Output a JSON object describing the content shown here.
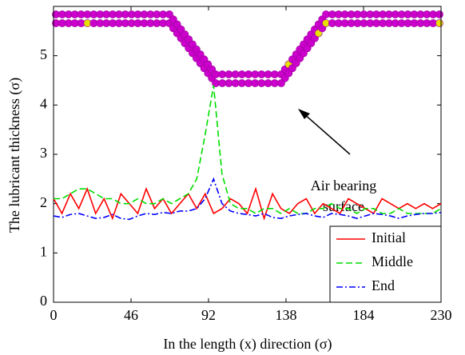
{
  "chart_data": {
    "type": "line",
    "xlabel": "In the length (x) direction (σ)",
    "ylabel": "The lubricant thickness (σ)",
    "annotation": [
      "Air bearing",
      "surface"
    ],
    "x": [
      0,
      5,
      10,
      15,
      20,
      25,
      30,
      35,
      40,
      45,
      50,
      55,
      60,
      65,
      70,
      75,
      80,
      85,
      90,
      95,
      100,
      105,
      110,
      115,
      120,
      125,
      130,
      135,
      140,
      145,
      150,
      155,
      160,
      165,
      170,
      175,
      180,
      185,
      190,
      195,
      200,
      205,
      210,
      215,
      220,
      225,
      230
    ],
    "series": [
      {
        "name": "Initial",
        "color": "#ff0000",
        "dash": "solid",
        "values": [
          2.1,
          1.8,
          2.2,
          1.9,
          2.3,
          1.8,
          2.1,
          1.7,
          2.2,
          2.0,
          1.8,
          2.3,
          1.9,
          2.1,
          1.8,
          2.0,
          2.2,
          1.9,
          2.2,
          1.8,
          1.9,
          2.1,
          2.0,
          1.8,
          2.3,
          1.7,
          2.2,
          1.9,
          1.8,
          2.0,
          2.1,
          1.8,
          2.0,
          1.9,
          1.8,
          2.1,
          2.0,
          1.9,
          1.8,
          2.1,
          2.0,
          1.9,
          2.0,
          1.9,
          2.0,
          1.9,
          2.0
        ]
      },
      {
        "name": "Middle",
        "color": "#00dd00",
        "dash": "dashed",
        "values": [
          2.1,
          2.1,
          2.2,
          2.3,
          2.3,
          2.2,
          2.1,
          2.1,
          2.0,
          2.0,
          2.1,
          2.0,
          2.0,
          2.1,
          2.0,
          2.1,
          2.2,
          2.5,
          3.4,
          4.4,
          2.6,
          2.0,
          1.9,
          1.9,
          1.8,
          1.9,
          1.9,
          1.8,
          1.9,
          1.8,
          1.8,
          1.9,
          1.9,
          2.0,
          1.9,
          1.9,
          1.8,
          1.9,
          1.9,
          1.8,
          1.8,
          1.9,
          1.8,
          1.8,
          1.8,
          1.8,
          1.9
        ]
      },
      {
        "name": "End",
        "color": "#0000ff",
        "dash": "dashdot",
        "values": [
          1.75,
          1.72,
          1.78,
          1.8,
          1.75,
          1.7,
          1.72,
          1.78,
          1.7,
          1.68,
          1.75,
          1.8,
          1.78,
          1.82,
          1.8,
          1.85,
          1.85,
          1.9,
          2.1,
          2.5,
          2.0,
          1.85,
          1.8,
          1.78,
          1.75,
          1.8,
          1.72,
          1.7,
          1.75,
          1.78,
          1.8,
          1.75,
          1.72,
          1.8,
          1.78,
          1.75,
          1.7,
          1.75,
          1.8,
          1.78,
          1.75,
          1.7,
          1.75,
          1.78,
          1.8,
          1.8,
          1.82
        ]
      }
    ],
    "xlim": [
      0,
      230
    ],
    "xticks": [
      0,
      46,
      92,
      138,
      184,
      230
    ],
    "ylim": [
      0,
      6
    ],
    "yticks": [
      0,
      1,
      2,
      3,
      4,
      5
    ],
    "legend": "lower right"
  }
}
